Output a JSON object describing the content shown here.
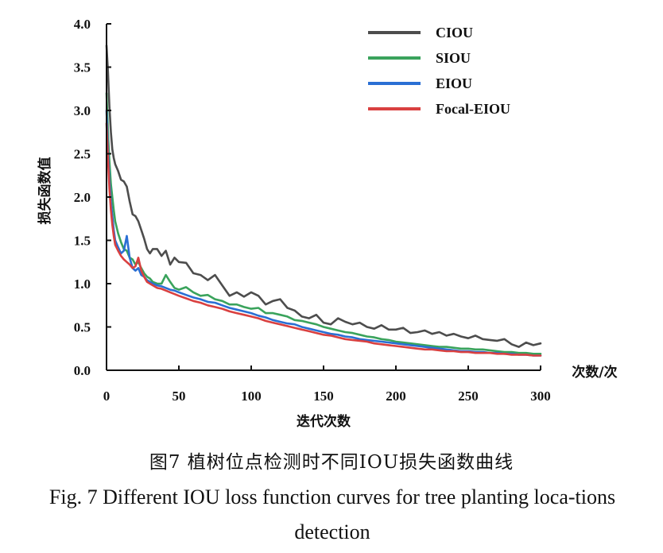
{
  "chart_data": {
    "type": "line",
    "xlabel": "迭代次数",
    "x_unit_label": "次数/次",
    "ylabel": "损失函数值",
    "xlim": [
      0,
      300
    ],
    "ylim": [
      0,
      4.0
    ],
    "x_ticks": [
      "0",
      "50",
      "100",
      "150",
      "200",
      "250",
      "300"
    ],
    "y_ticks": [
      "0.0",
      "0.5",
      "1.0",
      "1.5",
      "2.0",
      "2.5",
      "3.0",
      "3.5",
      "4.0"
    ],
    "legend_position": "top-right",
    "x": [
      0,
      1,
      2,
      3,
      4,
      5,
      6,
      8,
      10,
      12,
      14,
      16,
      18,
      20,
      22,
      24,
      26,
      28,
      30,
      32,
      35,
      38,
      41,
      44,
      47,
      50,
      55,
      60,
      65,
      70,
      75,
      80,
      85,
      90,
      95,
      100,
      105,
      110,
      115,
      120,
      125,
      130,
      135,
      140,
      145,
      150,
      155,
      160,
      165,
      170,
      175,
      180,
      185,
      190,
      195,
      200,
      205,
      210,
      215,
      220,
      225,
      230,
      235,
      240,
      245,
      250,
      255,
      260,
      265,
      270,
      275,
      280,
      285,
      290,
      295,
      300
    ],
    "series": [
      {
        "name": "CIOU",
        "color": "#4d4d4d",
        "values": [
          3.75,
          3.45,
          3.05,
          2.75,
          2.55,
          2.45,
          2.38,
          2.3,
          2.2,
          2.18,
          2.12,
          1.95,
          1.8,
          1.78,
          1.72,
          1.62,
          1.52,
          1.4,
          1.35,
          1.4,
          1.4,
          1.32,
          1.38,
          1.22,
          1.3,
          1.25,
          1.24,
          1.12,
          1.1,
          1.04,
          1.1,
          0.98,
          0.86,
          0.9,
          0.85,
          0.9,
          0.86,
          0.76,
          0.8,
          0.82,
          0.72,
          0.69,
          0.62,
          0.6,
          0.64,
          0.55,
          0.53,
          0.6,
          0.56,
          0.53,
          0.55,
          0.5,
          0.48,
          0.52,
          0.47,
          0.47,
          0.49,
          0.43,
          0.44,
          0.46,
          0.42,
          0.44,
          0.4,
          0.42,
          0.39,
          0.37,
          0.4,
          0.36,
          0.35,
          0.34,
          0.36,
          0.3,
          0.27,
          0.32,
          0.29,
          0.31
        ]
      },
      {
        "name": "SIOU",
        "color": "#3aa35c",
        "values": [
          3.2,
          2.75,
          2.42,
          2.15,
          2.0,
          1.85,
          1.72,
          1.58,
          1.48,
          1.4,
          1.38,
          1.3,
          1.28,
          1.22,
          1.25,
          1.18,
          1.12,
          1.08,
          1.06,
          1.02,
          1.0,
          1.0,
          1.1,
          1.02,
          0.95,
          0.93,
          0.96,
          0.9,
          0.86,
          0.87,
          0.82,
          0.8,
          0.76,
          0.76,
          0.73,
          0.71,
          0.72,
          0.66,
          0.66,
          0.64,
          0.62,
          0.58,
          0.57,
          0.55,
          0.53,
          0.5,
          0.48,
          0.46,
          0.44,
          0.43,
          0.41,
          0.39,
          0.38,
          0.36,
          0.35,
          0.33,
          0.32,
          0.31,
          0.3,
          0.29,
          0.28,
          0.27,
          0.27,
          0.26,
          0.25,
          0.25,
          0.24,
          0.24,
          0.23,
          0.22,
          0.21,
          0.21,
          0.2,
          0.2,
          0.19,
          0.19
        ]
      },
      {
        "name": "EIOU",
        "color": "#2a6fd4",
        "values": [
          3.0,
          2.55,
          2.2,
          1.95,
          1.78,
          1.62,
          1.5,
          1.42,
          1.35,
          1.38,
          1.55,
          1.3,
          1.18,
          1.15,
          1.18,
          1.1,
          1.08,
          1.04,
          1.02,
          1.0,
          0.98,
          0.97,
          0.95,
          0.93,
          0.92,
          0.9,
          0.87,
          0.84,
          0.82,
          0.79,
          0.78,
          0.75,
          0.72,
          0.7,
          0.68,
          0.66,
          0.63,
          0.61,
          0.58,
          0.56,
          0.54,
          0.53,
          0.5,
          0.48,
          0.46,
          0.44,
          0.42,
          0.41,
          0.39,
          0.38,
          0.36,
          0.35,
          0.34,
          0.33,
          0.32,
          0.31,
          0.3,
          0.29,
          0.28,
          0.27,
          0.26,
          0.25,
          0.24,
          0.23,
          0.22,
          0.22,
          0.21,
          0.21,
          0.2,
          0.2,
          0.19,
          0.19,
          0.18,
          0.18,
          0.17,
          0.17
        ]
      },
      {
        "name": "Focal-EIOU",
        "color": "#d94040",
        "values": [
          2.85,
          2.45,
          2.1,
          1.85,
          1.68,
          1.55,
          1.45,
          1.38,
          1.32,
          1.28,
          1.25,
          1.22,
          1.18,
          1.2,
          1.3,
          1.15,
          1.08,
          1.02,
          1.0,
          0.98,
          0.95,
          0.94,
          0.92,
          0.9,
          0.88,
          0.86,
          0.83,
          0.8,
          0.78,
          0.75,
          0.73,
          0.71,
          0.68,
          0.66,
          0.64,
          0.62,
          0.6,
          0.57,
          0.55,
          0.53,
          0.51,
          0.49,
          0.47,
          0.45,
          0.43,
          0.41,
          0.4,
          0.38,
          0.36,
          0.35,
          0.34,
          0.33,
          0.31,
          0.3,
          0.29,
          0.28,
          0.27,
          0.26,
          0.25,
          0.24,
          0.24,
          0.23,
          0.22,
          0.22,
          0.21,
          0.21,
          0.2,
          0.2,
          0.2,
          0.19,
          0.19,
          0.18,
          0.18,
          0.18,
          0.17,
          0.17
        ]
      }
    ]
  },
  "caption": {
    "chinese": "图7  植树位点检测时不同IOU损失函数曲线",
    "english": "Fig. 7  Different IOU loss function curves for tree planting loca-tions detection"
  }
}
